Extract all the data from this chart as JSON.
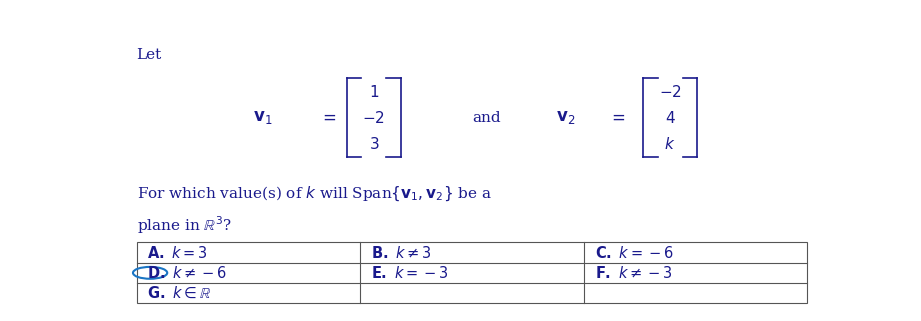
{
  "title_text": "Let",
  "v1_entries": [
    "1",
    "-2",
    "3"
  ],
  "v2_entries": [
    "-2",
    "4",
    "k"
  ],
  "and_text": "and",
  "bg_color": "#ffffff",
  "text_color": "#1a1a8c",
  "circle_color": "#1a75c4",
  "table_line_color": "#555555",
  "font_size": 11
}
